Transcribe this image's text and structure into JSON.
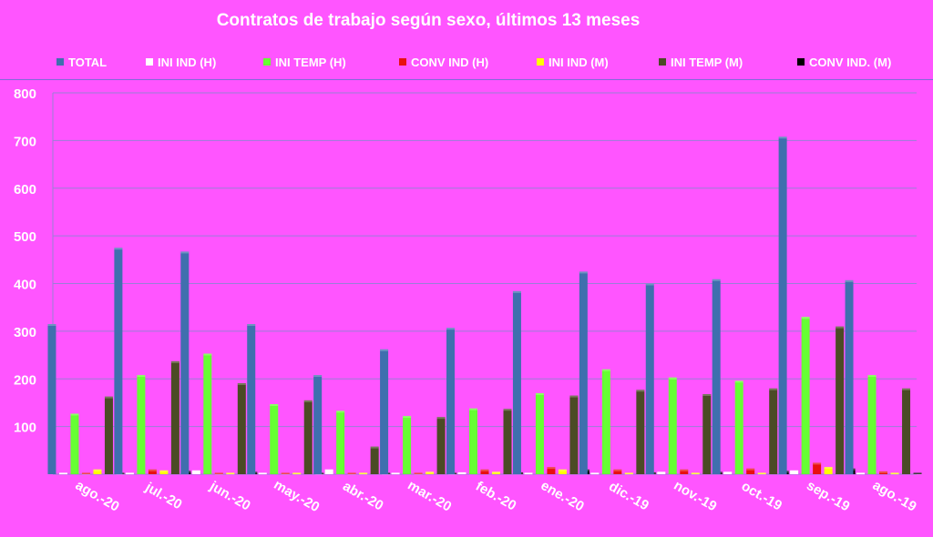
{
  "chart_data": {
    "type": "bar",
    "title": "Contratos de trabajo según sexo, últimos 13 meses",
    "categories": [
      "ago.-20",
      "jul.-20",
      "jun.-20",
      "may.-20",
      "abr.-20",
      "mar.-20",
      "feb.-20",
      "ene.-20",
      "dic.-19",
      "nov.-19",
      "oct.-19",
      "sep.-19",
      "ago.-19"
    ],
    "ylim": [
      0,
      800
    ],
    "yticks": [
      100,
      200,
      300,
      400,
      500,
      600,
      700,
      800
    ],
    "grid": true,
    "legend_position": "top",
    "series": [
      {
        "name": "TOTAL",
        "color": "#3f6fae",
        "values": [
          315,
          475,
          467,
          315,
          208,
          262,
          307,
          384,
          425,
          400,
          409,
          708,
          407
        ]
      },
      {
        "name": "INI IND (H)",
        "color": "#ffffff",
        "values": [
          3,
          3,
          8,
          3,
          10,
          3,
          4,
          3,
          3,
          5,
          5,
          8,
          3
        ]
      },
      {
        "name": "INI TEMP (H)",
        "color": "#66ff33",
        "values": [
          127,
          208,
          253,
          147,
          133,
          122,
          138,
          170,
          220,
          203,
          196,
          330,
          208
        ]
      },
      {
        "name": "CONV IND (H)",
        "color": "#e81010",
        "values": [
          3,
          10,
          3,
          3,
          3,
          3,
          10,
          15,
          10,
          10,
          12,
          24,
          6
        ]
      },
      {
        "name": "INI IND (M)",
        "color": "#ffff00",
        "values": [
          10,
          8,
          3,
          3,
          3,
          5,
          5,
          10,
          3,
          3,
          3,
          15,
          3
        ]
      },
      {
        "name": "INI TEMP  (M)",
        "color": "#4b4b25",
        "values": [
          163,
          237,
          191,
          155,
          58,
          120,
          137,
          165,
          177,
          168,
          180,
          310,
          180
        ]
      },
      {
        "name": "CONV IND.  (M)",
        "color": "#000000",
        "values": [
          3,
          7,
          5,
          3,
          3,
          3,
          4,
          10,
          4,
          5,
          7,
          12,
          3
        ]
      }
    ]
  }
}
